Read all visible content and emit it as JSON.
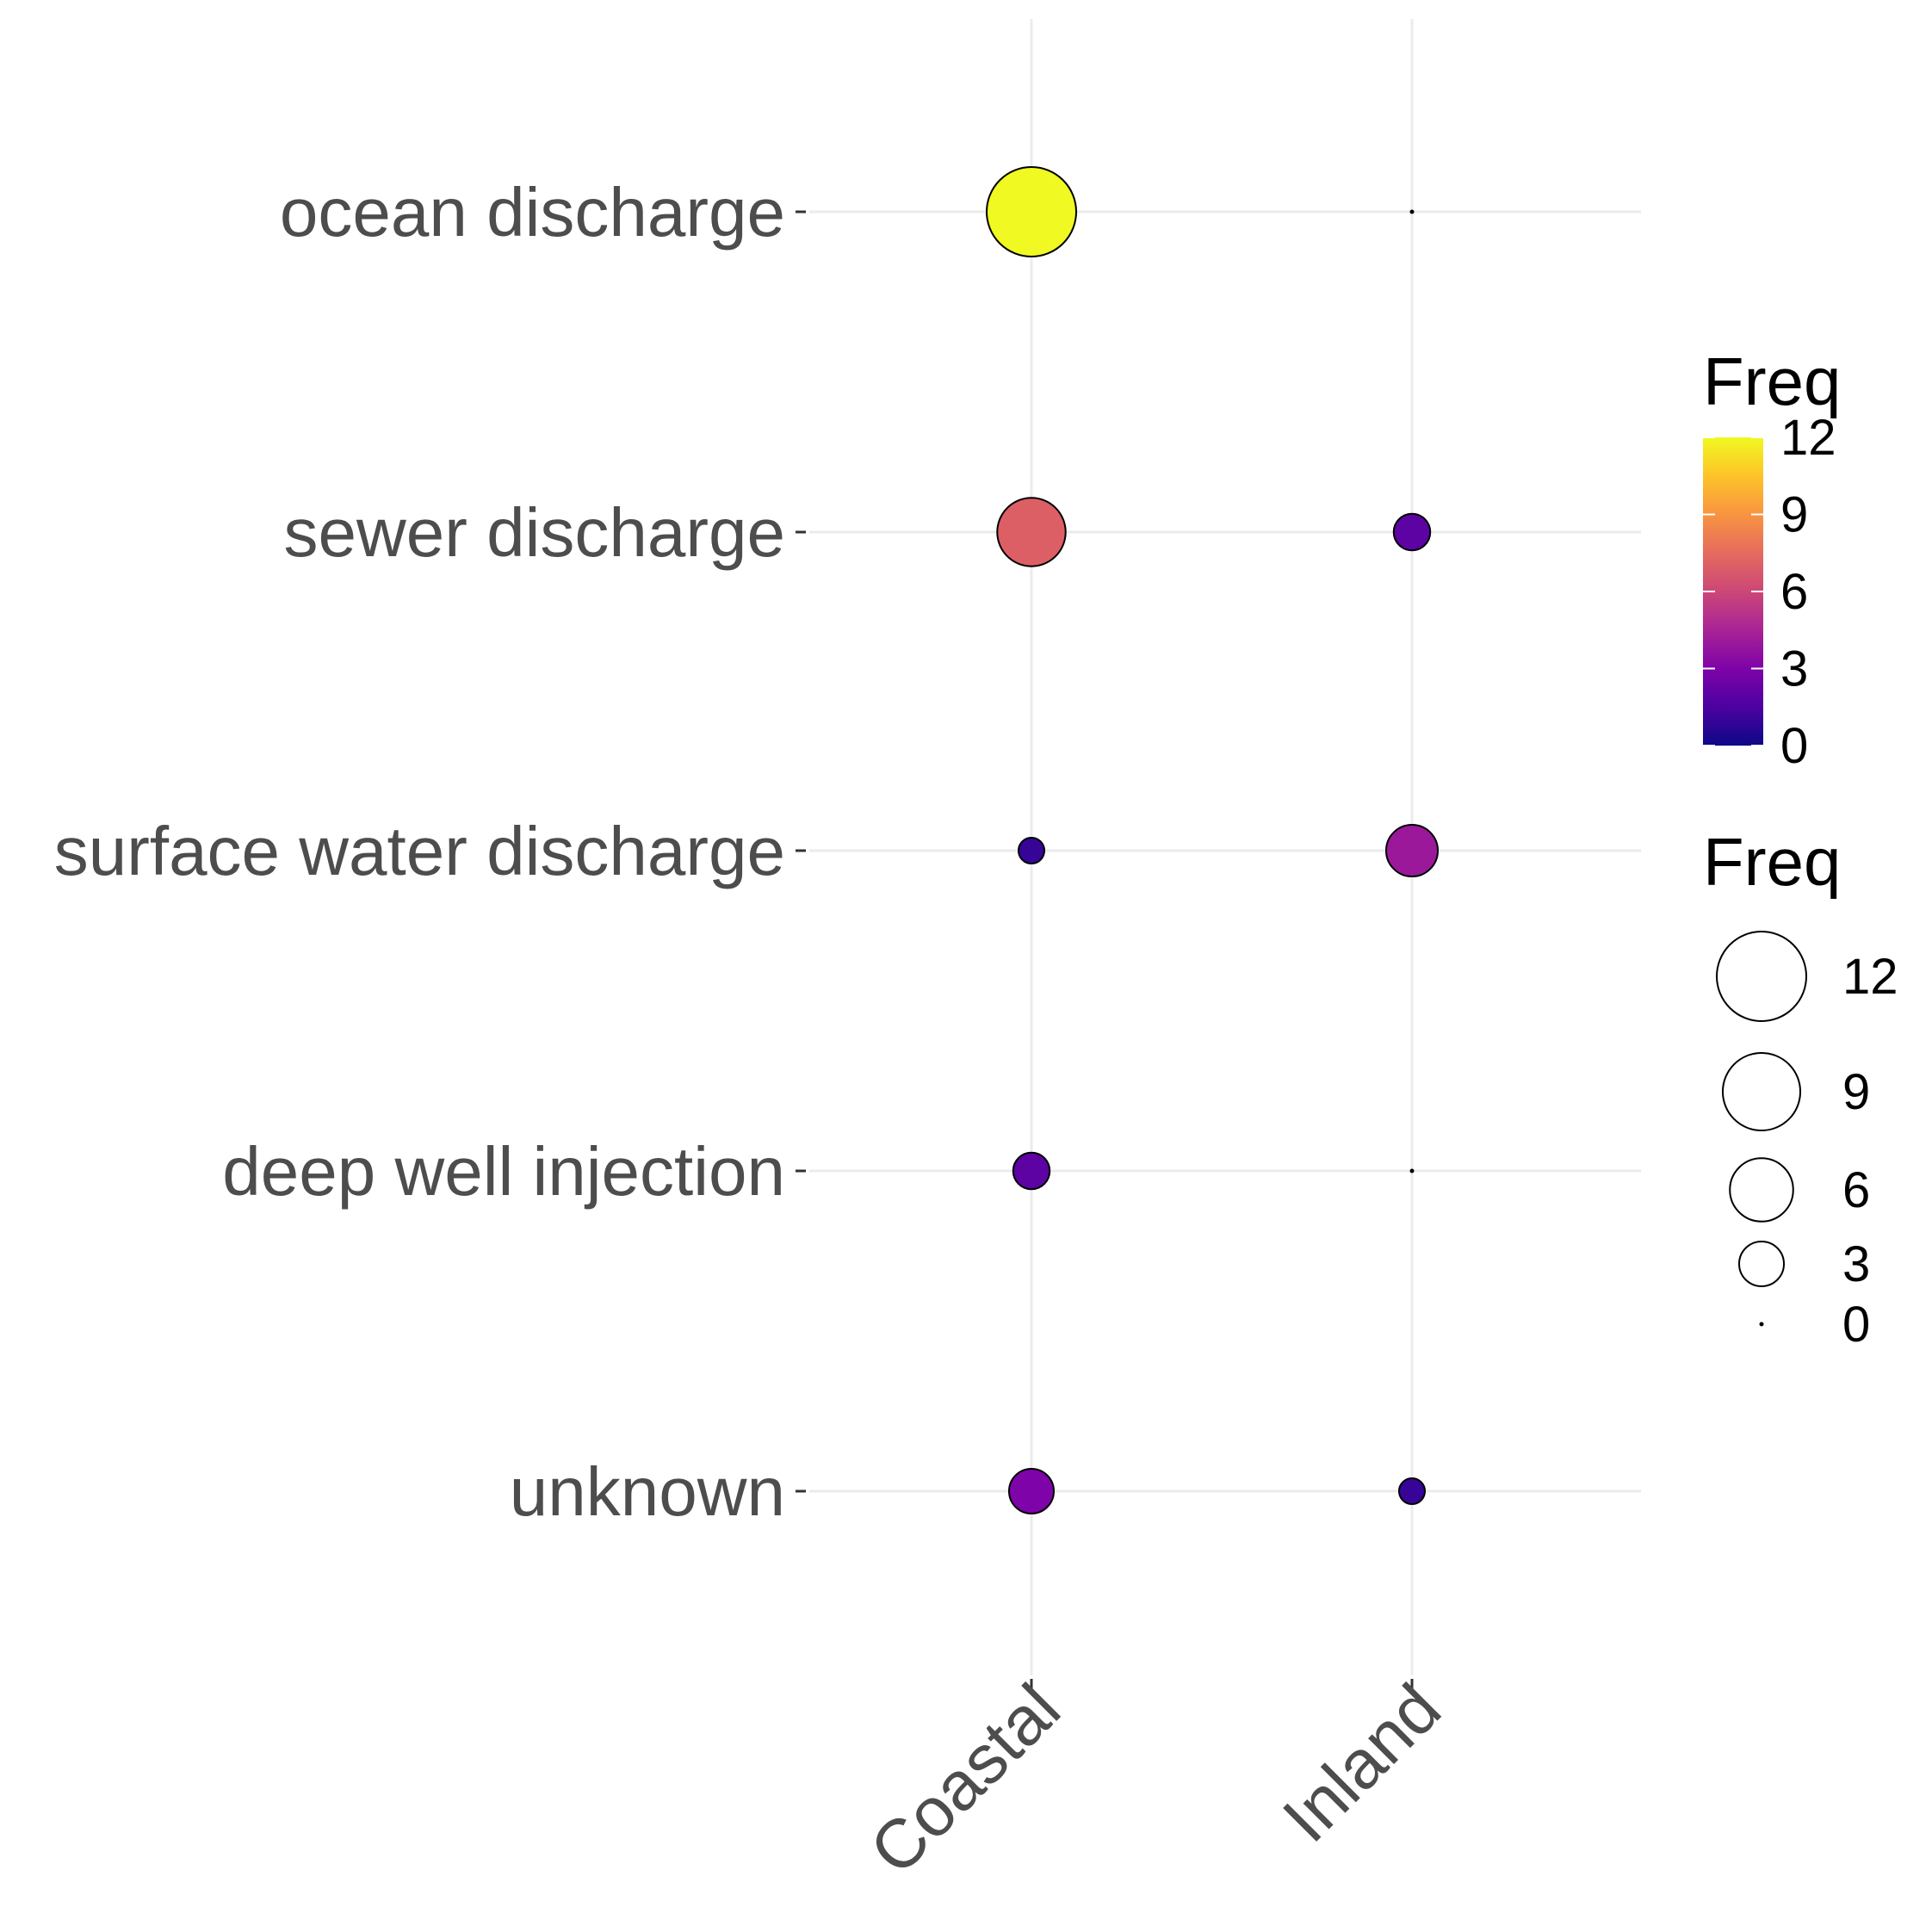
{
  "chart_data": {
    "type": "bubble",
    "x_categories": [
      "Coastal",
      "Inland"
    ],
    "y_categories": [
      "ocean discharge",
      "sewer discharge",
      "surface water discharge",
      "deep well injection",
      "unknown"
    ],
    "points": [
      {
        "x": "Coastal",
        "y": "ocean discharge",
        "freq": 12
      },
      {
        "x": "Inland",
        "y": "ocean discharge",
        "freq": 0
      },
      {
        "x": "Coastal",
        "y": "sewer discharge",
        "freq": 7
      },
      {
        "x": "Inland",
        "y": "sewer discharge",
        "freq": 2
      },
      {
        "x": "Coastal",
        "y": "surface water discharge",
        "freq": 1
      },
      {
        "x": "Inland",
        "y": "surface water discharge",
        "freq": 4
      },
      {
        "x": "Coastal",
        "y": "deep well injection",
        "freq": 2
      },
      {
        "x": "Inland",
        "y": "deep well injection",
        "freq": 0
      },
      {
        "x": "Coastal",
        "y": "unknown",
        "freq": 3
      },
      {
        "x": "Inland",
        "y": "unknown",
        "freq": 1
      }
    ],
    "color_scale": "plasma",
    "color_range": [
      0,
      12
    ],
    "grid": true,
    "legends": [
      {
        "kind": "colorbar",
        "title": "Freq",
        "breaks": [
          "0",
          "3",
          "6",
          "9",
          "12"
        ]
      },
      {
        "kind": "size",
        "title": "Freq",
        "breaks": [
          "12",
          "9",
          "6",
          "3",
          "0"
        ]
      }
    ],
    "legend_position": "right"
  }
}
